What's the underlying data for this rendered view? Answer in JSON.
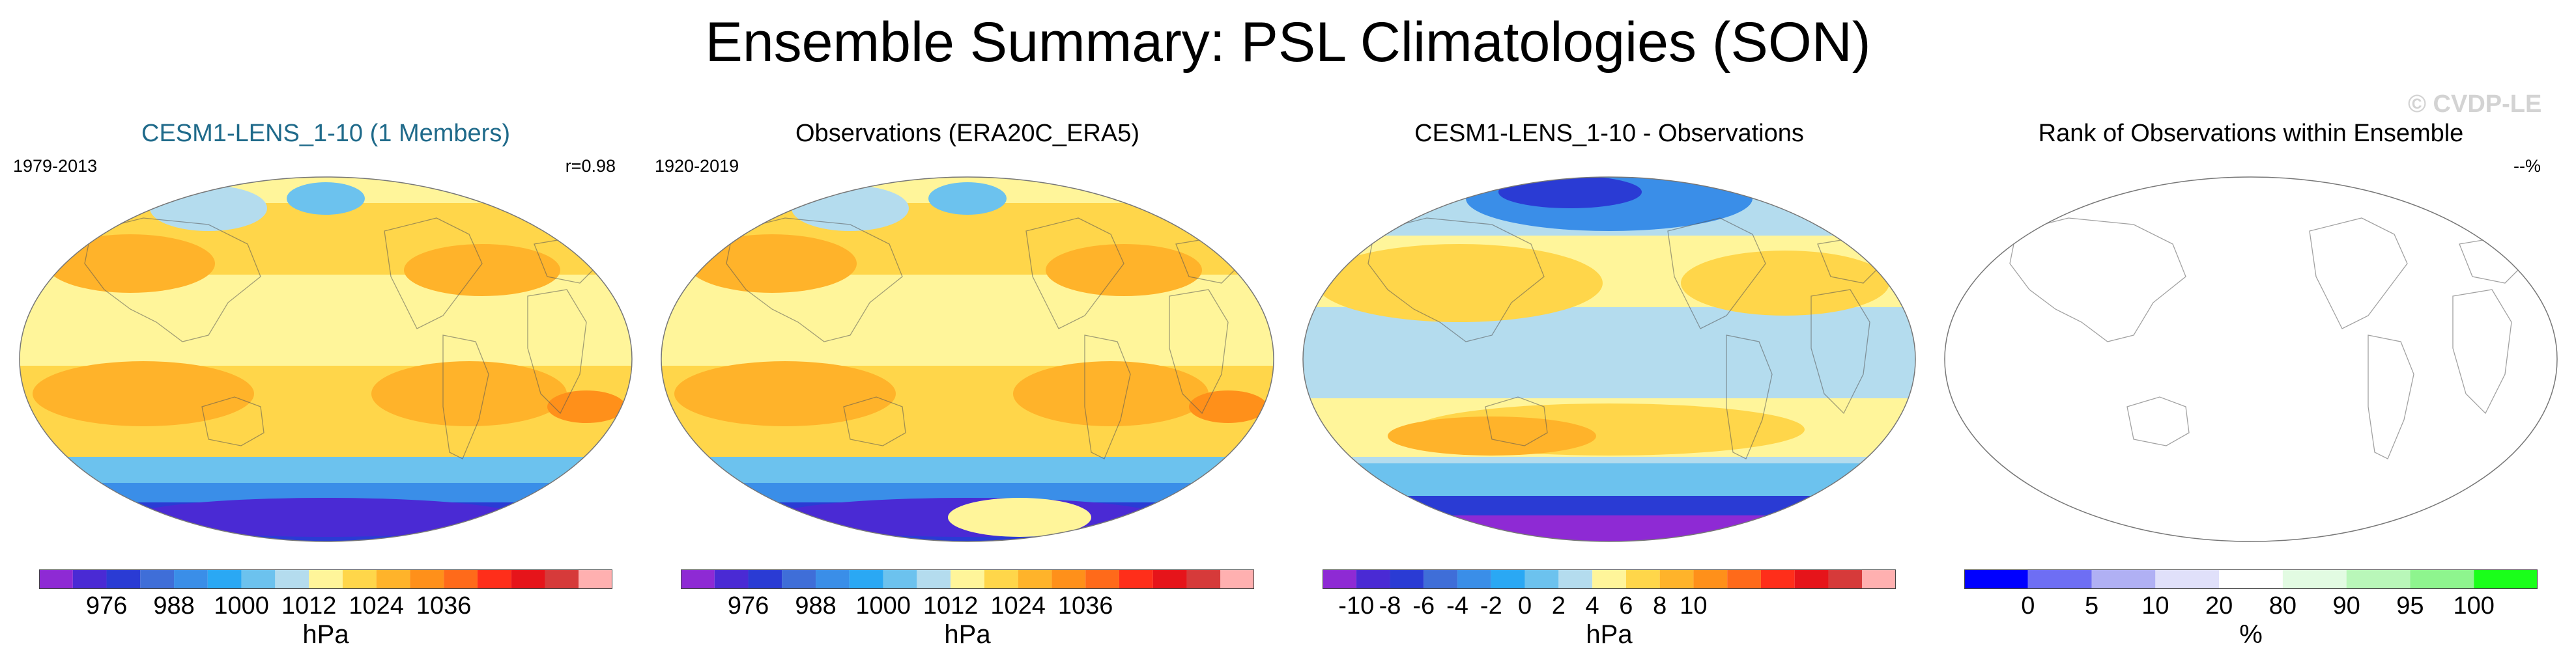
{
  "title": "Ensemble Summary: PSL Climatologies (SON)",
  "watermark": "© CVDP-LE",
  "panels": [
    {
      "title": "CESM1-LENS_1-10 (1 Members)",
      "title_color": "#1f6a8a",
      "left_label": "1979-2013",
      "right_label": "r=0.98",
      "colorbar": {
        "colors": [
          "#8e2ad4",
          "#4a2ad4",
          "#2a3bd4",
          "#3f6ed8",
          "#3a8ee8",
          "#2aa8f4",
          "#6cc2ee",
          "#b4dcee",
          "#fff59a",
          "#ffd64a",
          "#ffb32a",
          "#ff901a",
          "#ff6a1a",
          "#ff2e1a",
          "#e6141a",
          "#d63a3a",
          "#ffb0b0"
        ],
        "tick_labels": [
          "976",
          "988",
          "1000",
          "1012",
          "1024",
          "1036"
        ],
        "tick_positions": [
          2,
          4,
          6,
          8,
          10,
          12
        ],
        "unit": "hPa"
      }
    },
    {
      "title": "Observations (ERA20C_ERA5)",
      "title_color": "#000000",
      "left_label": "1920-2019",
      "right_label": "",
      "colorbar": {
        "colors": [
          "#8e2ad4",
          "#4a2ad4",
          "#2a3bd4",
          "#3f6ed8",
          "#3a8ee8",
          "#2aa8f4",
          "#6cc2ee",
          "#b4dcee",
          "#fff59a",
          "#ffd64a",
          "#ffb32a",
          "#ff901a",
          "#ff6a1a",
          "#ff2e1a",
          "#e6141a",
          "#d63a3a",
          "#ffb0b0"
        ],
        "tick_labels": [
          "976",
          "988",
          "1000",
          "1012",
          "1024",
          "1036"
        ],
        "tick_positions": [
          2,
          4,
          6,
          8,
          10,
          12
        ],
        "unit": "hPa"
      }
    },
    {
      "title": "CESM1-LENS_1-10 - Observations",
      "title_color": "#000000",
      "left_label": "",
      "right_label": "",
      "colorbar": {
        "colors": [
          "#8e2ad4",
          "#4a2ad4",
          "#2a3bd4",
          "#3f6ed8",
          "#3a8ee8",
          "#2aa8f4",
          "#6cc2ee",
          "#b4dcee",
          "#fff59a",
          "#ffd64a",
          "#ffb32a",
          "#ff901a",
          "#ff6a1a",
          "#ff2e1a",
          "#e6141a",
          "#d63a3a",
          "#ffb0b0"
        ],
        "tick_labels": [
          "-10",
          "-8",
          "-6",
          "-4",
          "-2",
          "0",
          "2",
          "4",
          "6",
          "8",
          "10"
        ],
        "tick_positions": [
          1,
          2,
          3,
          4,
          5,
          6,
          7,
          8,
          9,
          10,
          11
        ],
        "unit": "hPa"
      }
    },
    {
      "title": "Rank of Observations within Ensemble",
      "title_color": "#000000",
      "left_label": "",
      "right_label": "--%",
      "colorbar": {
        "colors": [
          "#0000ff",
          "#6e6ef4",
          "#b0b0f4",
          "#e0e0fa",
          "#ffffff",
          "#e2fbe2",
          "#b9f7b9",
          "#8ef58e",
          "#1aff1a"
        ],
        "tick_labels": [
          "0",
          "5",
          "10",
          "20",
          "80",
          "90",
          "95",
          "100"
        ],
        "tick_positions": [
          1,
          2,
          3,
          4,
          5,
          6,
          7,
          8
        ],
        "unit": "%"
      }
    }
  ],
  "chart_data": [
    {
      "type": "heatmap",
      "title": "CESM1-LENS_1-10 (1 Members)",
      "period": "1979-2013",
      "pattern_correlation": 0.98,
      "variable": "PSL",
      "season": "SON",
      "units": "hPa",
      "contour_levels": [
        972,
        976,
        980,
        984,
        988,
        992,
        996,
        1000,
        1004,
        1008,
        1012,
        1016,
        1020,
        1024,
        1028,
        1032,
        1036,
        1040
      ],
      "colorbar_tick_labels": [
        "976",
        "988",
        "1000",
        "1012",
        "1024",
        "1036"
      ]
    },
    {
      "type": "heatmap",
      "title": "Observations (ERA20C_ERA5)",
      "period": "1920-2019",
      "variable": "PSL",
      "season": "SON",
      "units": "hPa",
      "contour_levels": [
        972,
        976,
        980,
        984,
        988,
        992,
        996,
        1000,
        1004,
        1008,
        1012,
        1016,
        1020,
        1024,
        1028,
        1032,
        1036,
        1040
      ],
      "colorbar_tick_labels": [
        "976",
        "988",
        "1000",
        "1012",
        "1024",
        "1036"
      ]
    },
    {
      "type": "heatmap",
      "title": "CESM1-LENS_1-10 - Observations",
      "variable": "PSL difference",
      "season": "SON",
      "units": "hPa",
      "contour_levels": [
        -11,
        -10,
        -9,
        -8,
        -7,
        -6,
        -5,
        -4,
        -3,
        -2,
        -1,
        0,
        1,
        2,
        3,
        4,
        5,
        6,
        7,
        8,
        9,
        10,
        11
      ],
      "colorbar_tick_labels": [
        "-10",
        "-8",
        "-6",
        "-4",
        "-2",
        "0",
        "2",
        "4",
        "6",
        "8",
        "10"
      ]
    },
    {
      "type": "heatmap",
      "title": "Rank of Observations within Ensemble",
      "annotation": "--%",
      "units": "%",
      "contour_levels": [
        0,
        5,
        10,
        20,
        80,
        90,
        95,
        100
      ],
      "colorbar_tick_labels": [
        "0",
        "5",
        "10",
        "20",
        "80",
        "90",
        "95",
        "100"
      ]
    }
  ]
}
